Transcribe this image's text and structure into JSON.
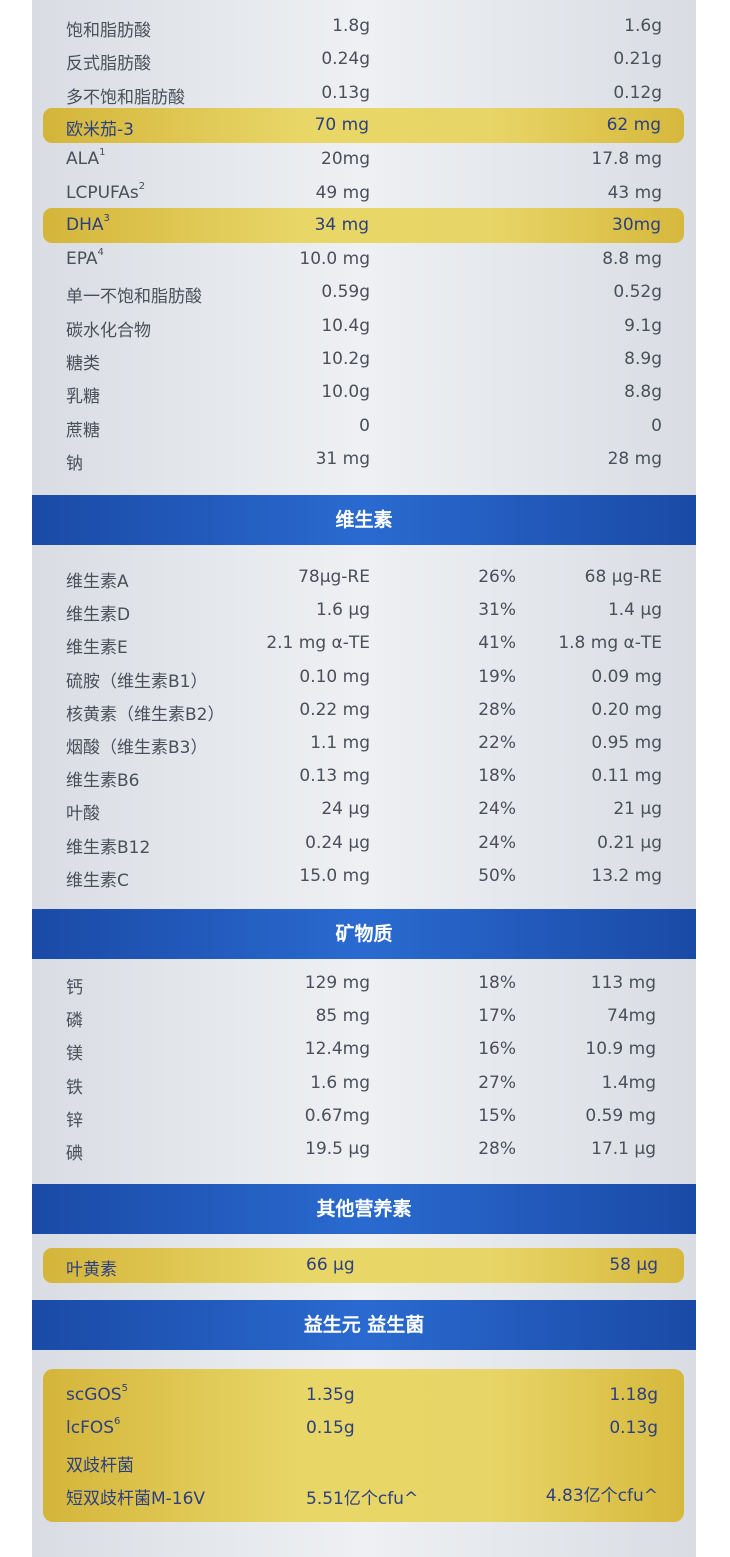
{
  "fat_rows": [
    {
      "name": "饱和脂肪酸",
      "sup": "",
      "v1": "1.8g",
      "v2": "1.6g",
      "highlight": false
    },
    {
      "name": "反式脂肪酸",
      "sup": "",
      "v1": "0.24g",
      "v2": "0.21g",
      "highlight": false
    },
    {
      "name": "多不饱和脂肪酸",
      "sup": "",
      "v1": "0.13g",
      "v2": "0.12g",
      "highlight": false
    },
    {
      "name": "欧米茄-3",
      "sup": "",
      "v1": "70 mg",
      "v2": "62 mg",
      "highlight": true
    },
    {
      "name": "ALA",
      "sup": "1",
      "v1": "20mg",
      "v2": "17.8 mg",
      "highlight": false
    },
    {
      "name": "LCPUFAs",
      "sup": "2",
      "v1": "49 mg",
      "v2": "43 mg",
      "highlight": false
    },
    {
      "name": "DHA",
      "sup": "3",
      "v1": "34 mg",
      "v2": "30mg",
      "highlight": true
    },
    {
      "name": "EPA",
      "sup": "4",
      "v1": "10.0 mg",
      "v2": "8.8 mg",
      "highlight": false
    },
    {
      "name": "单一不饱和脂肪酸",
      "sup": "",
      "v1": "0.59g",
      "v2": "0.52g",
      "highlight": false
    },
    {
      "name": "碳水化合物",
      "sup": "",
      "v1": "10.4g",
      "v2": "9.1g",
      "highlight": false
    },
    {
      "name": "糖类",
      "sup": "",
      "v1": "10.2g",
      "v2": "8.9g",
      "highlight": false
    },
    {
      "name": "乳糖",
      "sup": "",
      "v1": "10.0g",
      "v2": "8.8g",
      "highlight": false
    },
    {
      "name": "蔗糖",
      "sup": "",
      "v1": "0",
      "v2": "0",
      "highlight": false
    },
    {
      "name": "钠",
      "sup": "",
      "v1": "31 mg",
      "v2": "28 mg",
      "highlight": false
    }
  ],
  "vitamins": {
    "title": "维生素",
    "rows": [
      {
        "name": "维生素A",
        "v1": "78μg-RE",
        "pct": "26%",
        "v2": "68 μg-RE"
      },
      {
        "name": "维生素D",
        "v1": "1.6 μg",
        "pct": "31%",
        "v2": "1.4 μg"
      },
      {
        "name": "维生素E",
        "v1": "2.1 mg α-TE",
        "pct": "41%",
        "v2": "1.8 mg α-TE"
      },
      {
        "name": "硫胺（维生素B1）",
        "v1": "0.10 mg",
        "pct": "19%",
        "v2": "0.09 mg"
      },
      {
        "name": "核黄素（维生素B2）",
        "v1": "0.22 mg",
        "pct": "28%",
        "v2": "0.20 mg"
      },
      {
        "name": "烟酸（维生素B3）",
        "v1": "1.1 mg",
        "pct": "22%",
        "v2": "0.95 mg"
      },
      {
        "name": "维生素B6",
        "v1": "0.13 mg",
        "pct": "18%",
        "v2": "0.11 mg"
      },
      {
        "name": "叶酸",
        "v1": "24 μg",
        "pct": "24%",
        "v2": "21 μg"
      },
      {
        "name": "维生素B12",
        "v1": "0.24 μg",
        "pct": "24%",
        "v2": "0.21 μg"
      },
      {
        "name": "维生素C",
        "v1": "15.0 mg",
        "pct": "50%",
        "v2": "13.2 mg"
      }
    ]
  },
  "minerals": {
    "title": "矿物质",
    "rows": [
      {
        "name": "钙",
        "v1": "129 mg",
        "pct": "18%",
        "v2": "113 mg"
      },
      {
        "name": "磷",
        "v1": "85 mg",
        "pct": "17%",
        "v2": "74mg"
      },
      {
        "name": "镁",
        "v1": "12.4mg",
        "pct": "16%",
        "v2": "10.9 mg"
      },
      {
        "name": "铁",
        "v1": "1.6 mg",
        "pct": "27%",
        "v2": "1.4mg"
      },
      {
        "name": "锌",
        "v1": "0.67mg",
        "pct": "15%",
        "v2": "0.59 mg"
      },
      {
        "name": "碘",
        "v1": "19.5 μg",
        "pct": "28%",
        "v2": "17.1 μg"
      }
    ]
  },
  "other": {
    "title": "其他营养素",
    "row": {
      "name": "叶黄素",
      "v1": "66 μg",
      "v2": "58 μg"
    }
  },
  "probiotics": {
    "title": "益生元 益生菌",
    "rows": [
      {
        "name": "scGOS",
        "sup": "5",
        "v1": "1.35g",
        "v2": "1.18g"
      },
      {
        "name": "lcFOS",
        "sup": "6",
        "v1": "0.15g",
        "v2": "0.13g"
      },
      {
        "name": "双歧杆菌",
        "sup": "",
        "v1": "",
        "v2": ""
      },
      {
        "name": "短双歧杆菌M-16V",
        "sup": "",
        "v1": "5.51亿个cfu^",
        "v2": "4.83亿个cfu^"
      }
    ]
  }
}
